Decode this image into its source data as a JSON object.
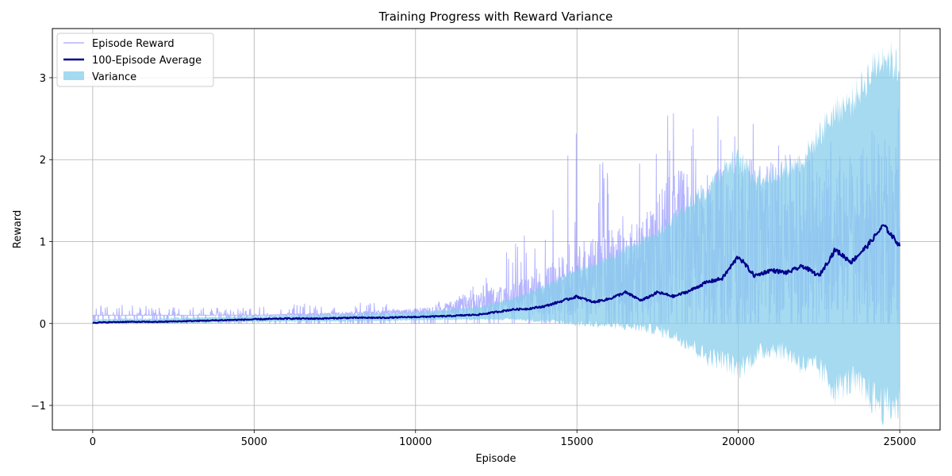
{
  "chart_data": {
    "type": "line",
    "title": "Training Progress with Reward Variance",
    "xlabel": "Episode",
    "ylabel": "Reward",
    "xlim": [
      -1250,
      26250
    ],
    "ylim": [
      -1.3,
      3.6
    ],
    "xticks": [
      0,
      5000,
      10000,
      15000,
      20000,
      25000
    ],
    "yticks": [
      -1,
      0,
      1,
      2,
      3
    ],
    "xtick_labels": [
      "0",
      "5000",
      "10000",
      "15000",
      "20000",
      "25000"
    ],
    "ytick_labels": [
      "−1",
      "0",
      "1",
      "2",
      "3"
    ],
    "grid": true,
    "legend": {
      "placement": "top-left",
      "entries": [
        "Episode Reward",
        "100-Episode Average",
        "Variance"
      ]
    },
    "colors": {
      "episode_reward": "#7777ff",
      "average": "#00008b",
      "variance": "#87ceeb"
    },
    "series": [
      {
        "name": "Episode Reward",
        "style": "thin line, alpha ~0.55",
        "envelope": {
          "x": [
            0,
            2000,
            5000,
            8000,
            10000,
            11000,
            12000,
            13000,
            14000,
            15000,
            16000,
            17000,
            17500,
            18000,
            19000,
            20000,
            21000,
            22000,
            23000,
            24000,
            25000
          ],
          "upper": [
            0.28,
            0.2,
            0.2,
            0.3,
            0.2,
            0.3,
            0.5,
            1.1,
            1.3,
            2.4,
            2.0,
            2.2,
            2.6,
            2.6,
            2.6,
            2.6,
            2.6,
            2.7,
            2.7,
            2.7,
            2.7
          ],
          "base": [
            0.1,
            0.1,
            0.1,
            0.1,
            0.1,
            0.1,
            0.1,
            0.1,
            0.1,
            0.1,
            0.1,
            0.1,
            0.1,
            0.1,
            0.1,
            0.1,
            0.1,
            0.1,
            0.1,
            0.1,
            0.1
          ],
          "dense_top": [
            0.1,
            0.1,
            0.1,
            0.15,
            0.2,
            0.3,
            0.45,
            0.6,
            0.8,
            1.2,
            1.4,
            1.6,
            2.0,
            2.3,
            2.4,
            2.5,
            2.5,
            2.6,
            2.6,
            2.7,
            2.7
          ]
        }
      },
      {
        "name": "100-Episode Average",
        "style": "thick line",
        "x": [
          0,
          1000,
          2000,
          3000,
          4000,
          5000,
          6000,
          7000,
          8000,
          9000,
          10000,
          11000,
          12000,
          12500,
          13000,
          13500,
          14000,
          14500,
          15000,
          15500,
          16000,
          16500,
          17000,
          17500,
          18000,
          18500,
          19000,
          19500,
          20000,
          20500,
          21000,
          21500,
          22000,
          22500,
          23000,
          23500,
          24000,
          24500,
          25000
        ],
        "values": [
          0.01,
          0.02,
          0.02,
          0.03,
          0.04,
          0.05,
          0.06,
          0.06,
          0.07,
          0.07,
          0.08,
          0.09,
          0.11,
          0.14,
          0.17,
          0.18,
          0.21,
          0.27,
          0.33,
          0.26,
          0.3,
          0.38,
          0.28,
          0.38,
          0.33,
          0.4,
          0.5,
          0.55,
          0.82,
          0.58,
          0.65,
          0.62,
          0.7,
          0.58,
          0.9,
          0.75,
          0.95,
          1.2,
          0.95
        ]
      },
      {
        "name": "Variance",
        "style": "filled band, alpha ~0.75",
        "x": [
          0,
          2000,
          5000,
          8000,
          10000,
          12000,
          13000,
          14000,
          15000,
          16000,
          17000,
          17500,
          18000,
          18500,
          19000,
          19500,
          20000,
          20500,
          21000,
          21500,
          22000,
          22500,
          23000,
          23500,
          24000,
          24500,
          25000
        ],
        "upper": [
          0.05,
          0.06,
          0.09,
          0.11,
          0.13,
          0.2,
          0.3,
          0.45,
          0.65,
          0.8,
          1.0,
          1.1,
          1.3,
          1.5,
          1.6,
          1.9,
          2.0,
          1.8,
          1.8,
          1.9,
          2.0,
          2.3,
          2.6,
          2.7,
          3.0,
          3.3,
          3.1
        ],
        "lower": [
          0.0,
          0.0,
          0.02,
          0.03,
          0.04,
          0.05,
          0.05,
          0.03,
          0.0,
          -0.02,
          -0.05,
          -0.08,
          -0.15,
          -0.25,
          -0.4,
          -0.45,
          -0.55,
          -0.4,
          -0.3,
          -0.35,
          -0.5,
          -0.55,
          -0.8,
          -0.7,
          -0.85,
          -1.0,
          -1.0
        ]
      }
    ]
  }
}
